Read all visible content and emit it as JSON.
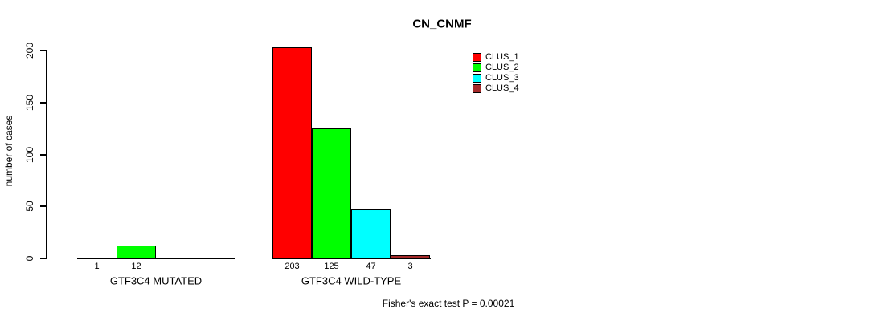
{
  "chart_data": {
    "type": "bar",
    "title": "CN_CNMF",
    "ylabel": "number of cases",
    "xlabel": "",
    "ylim": [
      0,
      200
    ],
    "yticks": [
      0,
      50,
      100,
      150,
      200
    ],
    "grid": false,
    "legend_position": "top-right",
    "series": [
      {
        "name": "CLUS_1",
        "color": "#FF0000"
      },
      {
        "name": "CLUS_2",
        "color": "#00FF00"
      },
      {
        "name": "CLUS_3",
        "color": "#00FFFF"
      },
      {
        "name": "CLUS_4",
        "color": "#A52A2A"
      }
    ],
    "groups": [
      {
        "label": "GTF3C4 MUTATED",
        "values": [
          1,
          12,
          0,
          0
        ],
        "bar_labels": [
          "1",
          "12",
          "",
          ""
        ]
      },
      {
        "label": "GTF3C4 WILD-TYPE",
        "values": [
          203,
          125,
          47,
          3
        ],
        "bar_labels": [
          "203",
          "125",
          "47",
          "3"
        ]
      }
    ],
    "annotation": "Fisher's exact test P = 0.00021"
  }
}
